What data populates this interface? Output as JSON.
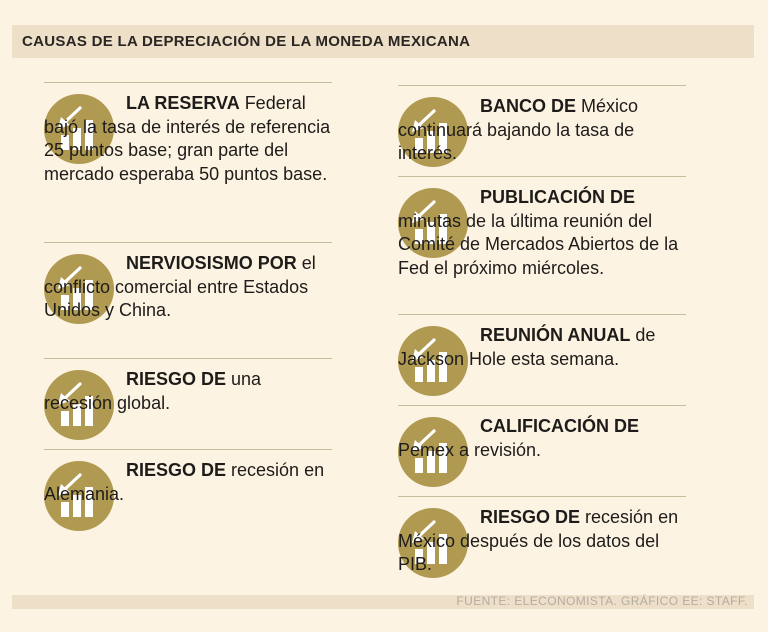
{
  "title": "CAUSAS DE LA DEPRECIACIÓN DE LA MONEDA MEXICANA",
  "icon_name": "bar-chart-down-arrow-icon",
  "colors": {
    "icon_gold": "#b09a52",
    "background": "#fdf3e2",
    "band": "#eedfc9",
    "rule": "#c9bb9e"
  },
  "left_items": [
    {
      "lead": "LA RESERVA",
      "rest": " Federal bajó la tasa de interés de referencia 25 puntos base; gran parte del mercado esperaba 50 puntos base."
    },
    {
      "lead": "NERVIOSISMO POR",
      "rest": " el conflicto comercial entre Estados Unidos y China."
    },
    {
      "lead": "RIESGO DE",
      "rest": " una recesión global."
    },
    {
      "lead": "RIESGO DE",
      "rest": " recesión en Alemania."
    }
  ],
  "right_items": [
    {
      "lead": "BANCO DE",
      "rest": " México continuará bajando la tasa de interés."
    },
    {
      "lead": "PUBLICACIÓN DE",
      "rest": " minutas de la última reunión del Comité de Mercados Abiertos de la Fed el próximo miércoles."
    },
    {
      "lead": "REUNIÓN ANUAL",
      "rest": " de Jackson Hole esta semana."
    },
    {
      "lead": "CALIFICACIÓN DE",
      "rest": " Pemex a revisión."
    },
    {
      "lead": "RIESGO DE",
      "rest": " recesión en México después de los datos del PIB."
    }
  ],
  "footer": {
    "source": "FUENTE: ELECONOMISTA. GRÁFICO EE: STAFF."
  }
}
